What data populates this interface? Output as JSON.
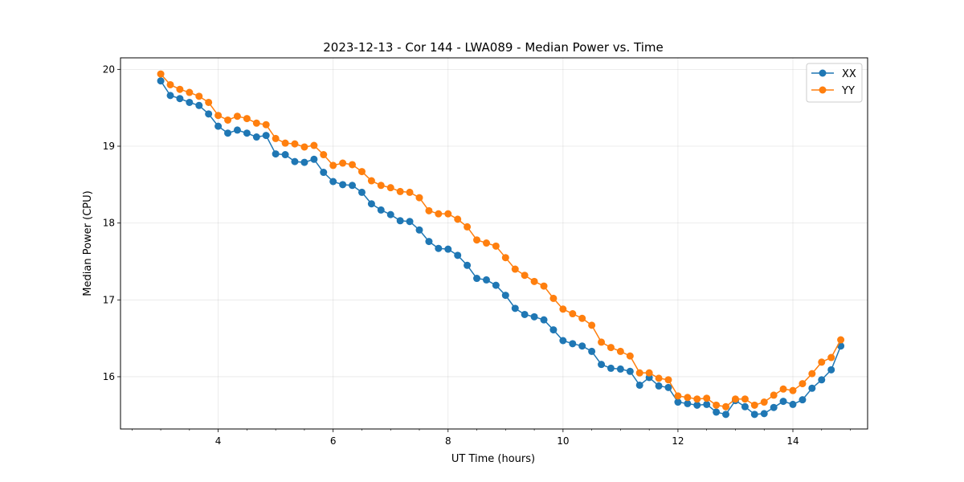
{
  "chart_data": {
    "type": "line",
    "title": "2023-12-13 - Cor 144 - LWA089 - Median Power vs. Time",
    "xlabel": "UT Time (hours)",
    "ylabel": "Median Power (CPU)",
    "xlim": [
      2.3,
      15.3
    ],
    "ylim": [
      15.32,
      20.15
    ],
    "xticks": [
      4,
      6,
      8,
      10,
      12,
      14
    ],
    "yticks": [
      16,
      17,
      18,
      19,
      20
    ],
    "grid": true,
    "legend_position": "top-right",
    "x": [
      3.0,
      3.167,
      3.333,
      3.5,
      3.667,
      3.833,
      4.0,
      4.167,
      4.333,
      4.5,
      4.667,
      4.833,
      5.0,
      5.167,
      5.333,
      5.5,
      5.667,
      5.833,
      6.0,
      6.167,
      6.333,
      6.5,
      6.667,
      6.833,
      7.0,
      7.167,
      7.333,
      7.5,
      7.667,
      7.833,
      8.0,
      8.167,
      8.333,
      8.5,
      8.667,
      8.833,
      9.0,
      9.167,
      9.333,
      9.5,
      9.667,
      9.833,
      10.0,
      10.167,
      10.333,
      10.5,
      10.667,
      10.833,
      11.0,
      11.167,
      11.333,
      11.5,
      11.667,
      11.833,
      12.0,
      12.167,
      12.333,
      12.5,
      12.667,
      12.833,
      13.0,
      13.167,
      13.333,
      13.5,
      13.667,
      13.833,
      14.0,
      14.167,
      14.333,
      14.5,
      14.667,
      14.833
    ],
    "series": [
      {
        "name": "XX",
        "color": "#1f77b4",
        "values": [
          19.85,
          19.66,
          19.62,
          19.57,
          19.53,
          19.42,
          19.26,
          19.17,
          19.21,
          19.17,
          19.12,
          19.14,
          18.9,
          18.89,
          18.8,
          18.79,
          18.83,
          18.66,
          18.54,
          18.5,
          18.49,
          18.4,
          18.25,
          18.17,
          18.11,
          18.03,
          18.02,
          17.91,
          17.76,
          17.67,
          17.66,
          17.58,
          17.45,
          17.28,
          17.26,
          17.19,
          17.06,
          16.89,
          16.81,
          16.78,
          16.74,
          16.61,
          16.47,
          16.43,
          16.4,
          16.33,
          16.16,
          16.11,
          16.1,
          16.07,
          15.89,
          15.99,
          15.88,
          15.86,
          15.67,
          15.65,
          15.63,
          15.64,
          15.54,
          15.51,
          15.69,
          15.61,
          15.51,
          15.52,
          15.6,
          15.68,
          15.64,
          15.7,
          15.85,
          15.96,
          16.09,
          16.4
        ]
      },
      {
        "name": "YY",
        "color": "#ff7f0e",
        "values": [
          19.94,
          19.8,
          19.74,
          19.7,
          19.65,
          19.57,
          19.4,
          19.34,
          19.39,
          19.36,
          19.3,
          19.28,
          19.1,
          19.04,
          19.03,
          18.99,
          19.01,
          18.89,
          18.75,
          18.78,
          18.76,
          18.67,
          18.55,
          18.49,
          18.46,
          18.41,
          18.4,
          18.33,
          18.16,
          18.12,
          18.12,
          18.05,
          17.95,
          17.78,
          17.74,
          17.7,
          17.55,
          17.4,
          17.32,
          17.24,
          17.18,
          17.02,
          16.88,
          16.82,
          16.76,
          16.67,
          16.45,
          16.38,
          16.33,
          16.27,
          16.05,
          16.05,
          15.98,
          15.96,
          15.75,
          15.73,
          15.71,
          15.72,
          15.63,
          15.61,
          15.71,
          15.71,
          15.63,
          15.67,
          15.76,
          15.84,
          15.82,
          15.91,
          16.04,
          16.19,
          16.25,
          16.48
        ]
      }
    ]
  }
}
